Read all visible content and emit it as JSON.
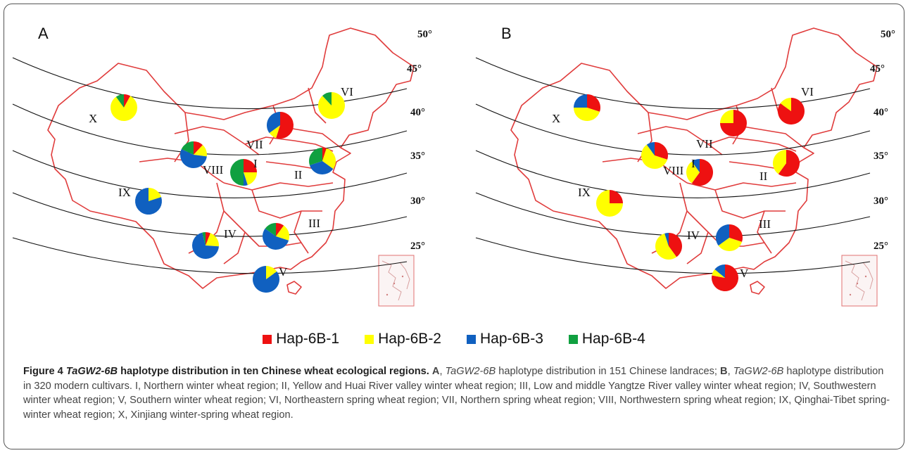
{
  "figure_label": "Figure 4",
  "title_gene": "TaGW2-6B",
  "title_rest": " haplotype distribution in ten Chinese wheat ecological regions.",
  "caption_A_letter": "A",
  "caption_A_gene": "TaGW2-6B",
  "caption_A_text": " haplotype distribution in 151 Chinese landraces;",
  "caption_B_letter": "B",
  "caption_B_gene": "TaGW2-6B",
  "caption_B_text": " haplotype distribution in 320 modern cultivars. I, Northern winter wheat region; II, Yellow and Huai River valley winter wheat region; III, Low and middle Yangtze River valley winter wheat region; IV, Southwestern winter wheat region; V, Southern winter wheat region; VI, Northeastern spring wheat region; VII, Northern spring wheat region; VIII, Northwestern spring wheat region; IX, Qinghai-Tibet spring-winter wheat region; X, Xinjiang winter-spring wheat region.",
  "latitudes": [
    "50°",
    "45°",
    "40°",
    "35°",
    "30°",
    "25°"
  ],
  "legend": [
    {
      "label": "Hap-6B-1",
      "color": "#ee1111"
    },
    {
      "label": "Hap-6B-2",
      "color": "#ffff00"
    },
    {
      "label": "Hap-6B-3",
      "color": "#1060c0"
    },
    {
      "label": "Hap-6B-4",
      "color": "#10a040"
    }
  ],
  "panels": [
    {
      "letter": "A",
      "regions": [
        {
          "label": "I",
          "fractions": [
            0.25,
            0.2,
            0.05,
            0.5
          ]
        },
        {
          "label": "II",
          "fractions": [
            0.05,
            0.3,
            0.35,
            0.3
          ]
        },
        {
          "label": "III",
          "fractions": [
            0.1,
            0.2,
            0.55,
            0.15
          ]
        },
        {
          "label": "IV",
          "fractions": [
            0.06,
            0.2,
            0.7,
            0.04
          ]
        },
        {
          "label": "V",
          "fractions": [
            0.0,
            0.15,
            0.85,
            0.0
          ]
        },
        {
          "label": "VI",
          "fractions": [
            0.0,
            0.88,
            0.0,
            0.12
          ]
        },
        {
          "label": "VII",
          "fractions": [
            0.55,
            0.1,
            0.35,
            0.0
          ]
        },
        {
          "label": "VIII",
          "fractions": [
            0.12,
            0.15,
            0.55,
            0.18
          ]
        },
        {
          "label": "IX",
          "fractions": [
            0.0,
            0.2,
            0.8,
            0.0
          ]
        },
        {
          "label": "X",
          "fractions": [
            0.08,
            0.82,
            0.0,
            0.1
          ]
        }
      ]
    },
    {
      "letter": "B",
      "regions": [
        {
          "label": "I",
          "fractions": [
            0.6,
            0.3,
            0.1,
            0.0
          ]
        },
        {
          "label": "II",
          "fractions": [
            0.6,
            0.4,
            0.0,
            0.0
          ]
        },
        {
          "label": "III",
          "fractions": [
            0.3,
            0.35,
            0.35,
            0.0
          ]
        },
        {
          "label": "IV",
          "fractions": [
            0.4,
            0.55,
            0.05,
            0.0
          ]
        },
        {
          "label": "V",
          "fractions": [
            0.78,
            0.08,
            0.14,
            0.0
          ]
        },
        {
          "label": "VI",
          "fractions": [
            0.85,
            0.15,
            0.0,
            0.0
          ]
        },
        {
          "label": "VII",
          "fractions": [
            0.75,
            0.25,
            0.0,
            0.0
          ]
        },
        {
          "label": "VIII",
          "fractions": [
            0.3,
            0.6,
            0.1,
            0.0
          ]
        },
        {
          "label": "IX",
          "fractions": [
            0.25,
            0.75,
            0.0,
            0.0
          ]
        },
        {
          "label": "X",
          "fractions": [
            0.3,
            0.45,
            0.25,
            0.0
          ]
        }
      ]
    }
  ]
}
